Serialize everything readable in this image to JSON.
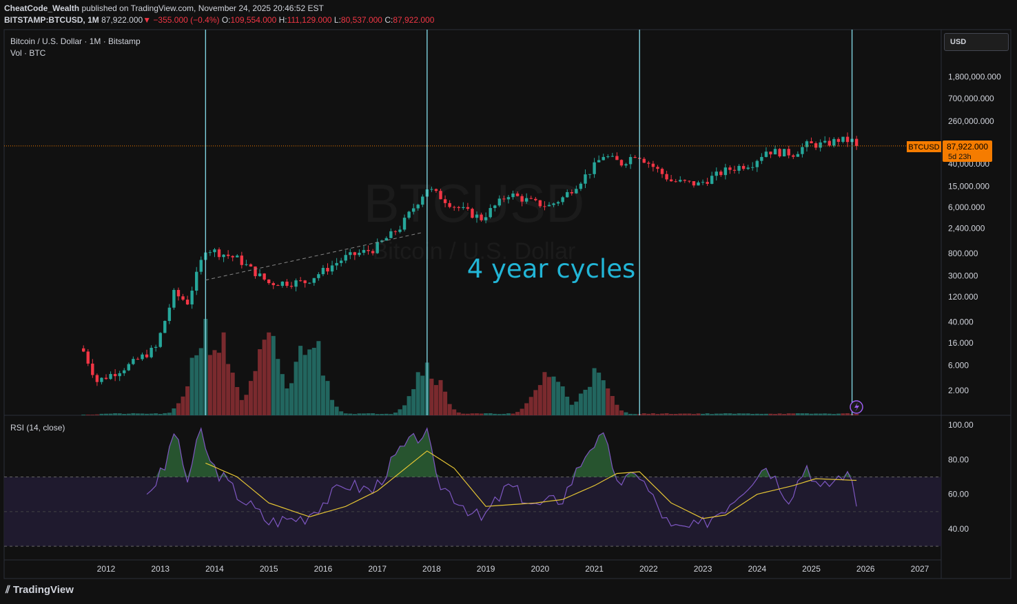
{
  "header": {
    "publisher": "CheatCode_Wealth",
    "published_text": " published on TradingView.com, November 24, 2025 20:46:52 EST",
    "symbol": "BITSTAMP:BTCUSD, 1M",
    "last": "87,922.000",
    "change": "−355.000 (−0.4%)",
    "open_label": "O:",
    "open": "109,554.000",
    "high_label": "H:",
    "high": "111,129.000",
    "low_label": "L:",
    "low": "80,537.000",
    "close_label": "C:",
    "close": "87,922.000"
  },
  "legend": {
    "main": "Bitcoin / U.S. Dollar · 1M · Bitstamp",
    "volume": "Vol · BTC",
    "rsi": "RSI (14, close)"
  },
  "watermark": {
    "ticker": "BTCUSD",
    "name": "Bitcoin / U.S. Dollar"
  },
  "annotation": "4 year cycles",
  "currency_button": "USD",
  "price_tag": {
    "symbol": "BTCUSD",
    "price": "87,922.000",
    "countdown": "5d 23h"
  },
  "footer": {
    "brand": "TradingView"
  },
  "colors": {
    "up": "#26a69a",
    "down": "#f23645",
    "vol_up": "#22665f",
    "vol_down": "#7a2a2e",
    "cycle_line": "#7fd3e0",
    "annotation": "#22b5d6",
    "rsi": "#7e57c2",
    "rsi_ma": "#e5c534",
    "price_line": "#f57c00",
    "rsi_band": "#1f1a2e"
  },
  "chart_data": [
    {
      "type": "candlestick",
      "title": "Bitcoin / U.S. Dollar · 1M · Bitstamp",
      "scale": "log",
      "x_ticks": [
        "2012",
        "2013",
        "2014",
        "2015",
        "2016",
        "2017",
        "2018",
        "2019",
        "2020",
        "2021",
        "2022",
        "2023",
        "2024",
        "2025",
        "2026",
        "2027"
      ],
      "y_ticks": [
        "1,800,000.000",
        "700,000.000",
        "260,000.000",
        "40,000.000",
        "15,000.000",
        "6,000.000",
        "2,400.000",
        "800.000",
        "300.000",
        "120.000",
        "40.000",
        "16.000",
        "6.000",
        "2.000"
      ],
      "cycle_lines": [
        "2013-11",
        "2017-12",
        "2021-11",
        "2025-10"
      ],
      "trendline": {
        "from": [
          "2013-11",
          250
        ],
        "to": [
          "2017-11",
          2000
        ]
      },
      "last_price": 87922,
      "anchors": [
        [
          "2011-08",
          11
        ],
        [
          "2011-11",
          3
        ],
        [
          "2012-06",
          6
        ],
        [
          "2012-12",
          13
        ],
        [
          "2013-04",
          140
        ],
        [
          "2013-07",
          95
        ],
        [
          "2013-11",
          1000
        ],
        [
          "2014-06",
          640
        ],
        [
          "2015-01",
          220
        ],
        [
          "2015-09",
          230
        ],
        [
          "2016-06",
          680
        ],
        [
          "2016-12",
          960
        ],
        [
          "2017-06",
          2500
        ],
        [
          "2017-12",
          14000
        ],
        [
          "2018-06",
          6400
        ],
        [
          "2018-12",
          3700
        ],
        [
          "2019-06",
          10800
        ],
        [
          "2019-12",
          7200
        ],
        [
          "2020-03",
          6400
        ],
        [
          "2020-06",
          9100
        ],
        [
          "2020-12",
          29000
        ],
        [
          "2021-03",
          58000
        ],
        [
          "2021-07",
          41000
        ],
        [
          "2021-10",
          61000
        ],
        [
          "2021-11",
          57000
        ],
        [
          "2022-06",
          19000
        ],
        [
          "2022-12",
          16500
        ],
        [
          "2023-06",
          30000
        ],
        [
          "2023-12",
          42000
        ],
        [
          "2024-03",
          71000
        ],
        [
          "2024-09",
          63000
        ],
        [
          "2024-12",
          93000
        ],
        [
          "2025-04",
          94000
        ],
        [
          "2025-07",
          115000
        ],
        [
          "2025-10",
          109554
        ],
        [
          "2025-11",
          87922
        ]
      ]
    },
    {
      "type": "bar",
      "title": "Vol · BTC",
      "note": "monthly volume histogram, relative heights 0-1",
      "peaks": [
        [
          "2013-11",
          1.0
        ],
        [
          "2014-02",
          0.85
        ],
        [
          "2015-01",
          0.82
        ],
        [
          "2015-10",
          0.92
        ],
        [
          "2017-12",
          0.6
        ],
        [
          "2020-03",
          0.5
        ],
        [
          "2021-01",
          0.47
        ]
      ]
    },
    {
      "type": "line",
      "title": "RSI (14, close)",
      "y_ticks": [
        "100.00",
        "80.00",
        "60.00",
        "40.00"
      ],
      "ylim": [
        30,
        100
      ],
      "bands": [
        70,
        50,
        30
      ],
      "rsi": [
        [
          "2012-10",
          60
        ],
        [
          "2013-02",
          75
        ],
        [
          "2013-04",
          97
        ],
        [
          "2013-07",
          68
        ],
        [
          "2013-10",
          97
        ],
        [
          "2013-12",
          78
        ],
        [
          "2014-06",
          60
        ],
        [
          "2015-01",
          44
        ],
        [
          "2015-09",
          47
        ],
        [
          "2016-06",
          66
        ],
        [
          "2016-12",
          62
        ],
        [
          "2017-06",
          85
        ],
        [
          "2017-12",
          97
        ],
        [
          "2018-02",
          68
        ],
        [
          "2018-12",
          45
        ],
        [
          "2019-06",
          65
        ],
        [
          "2019-12",
          53
        ],
        [
          "2020-06",
          58
        ],
        [
          "2020-12",
          88
        ],
        [
          "2021-03",
          92
        ],
        [
          "2021-07",
          63
        ],
        [
          "2021-10",
          75
        ],
        [
          "2022-06",
          40
        ],
        [
          "2022-12",
          41
        ],
        [
          "2023-06",
          53
        ],
        [
          "2024-03",
          77
        ],
        [
          "2024-08",
          58
        ],
        [
          "2024-12",
          77
        ],
        [
          "2025-03",
          62
        ],
        [
          "2025-08",
          72
        ],
        [
          "2025-10",
          68
        ],
        [
          "2025-11",
          53
        ]
      ],
      "rsi_ma": [
        [
          "2013-11",
          78
        ],
        [
          "2014-06",
          70
        ],
        [
          "2015-01",
          55
        ],
        [
          "2015-10",
          47
        ],
        [
          "2016-06",
          53
        ],
        [
          "2017-01",
          62
        ],
        [
          "2017-12",
          85
        ],
        [
          "2018-06",
          75
        ],
        [
          "2019-01",
          53
        ],
        [
          "2019-12",
          55
        ],
        [
          "2020-06",
          57
        ],
        [
          "2021-01",
          65
        ],
        [
          "2021-06",
          72
        ],
        [
          "2021-11",
          73
        ],
        [
          "2022-06",
          55
        ],
        [
          "2023-01",
          46
        ],
        [
          "2023-06",
          48
        ],
        [
          "2024-01",
          60
        ],
        [
          "2024-09",
          65
        ],
        [
          "2025-02",
          69
        ],
        [
          "2025-11",
          68
        ]
      ]
    }
  ]
}
